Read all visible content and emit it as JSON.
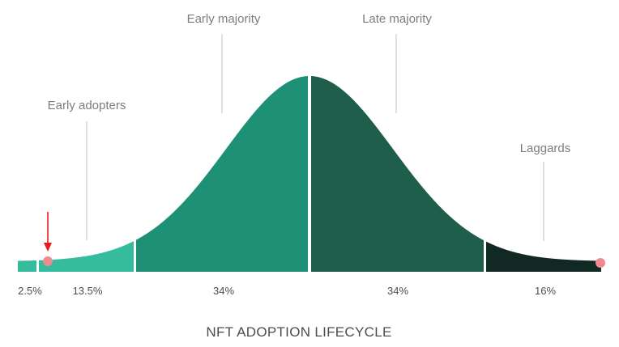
{
  "diagram": {
    "title": "NFT ADOPTION LIFECYCLE",
    "segments": [
      {
        "id": "innovators",
        "label": "",
        "percent": "2.5%",
        "color": "#34bc9c"
      },
      {
        "id": "early-adopters",
        "label": "Early adopters",
        "percent": "13.5%",
        "color": "#34bc9c"
      },
      {
        "id": "early-majority",
        "label": "Early majority",
        "percent": "34%",
        "color": "#1e9076"
      },
      {
        "id": "late-majority",
        "label": "Late majority",
        "percent": "34%",
        "color": "#1f5e4b"
      },
      {
        "id": "laggards",
        "label": "Laggards",
        "percent": "16%",
        "color": "#122823"
      }
    ],
    "markers": {
      "dot_color": "#ef8a8f",
      "arrow_color": "#e8191f"
    },
    "leader_line_color": "#cdd1d3"
  }
}
